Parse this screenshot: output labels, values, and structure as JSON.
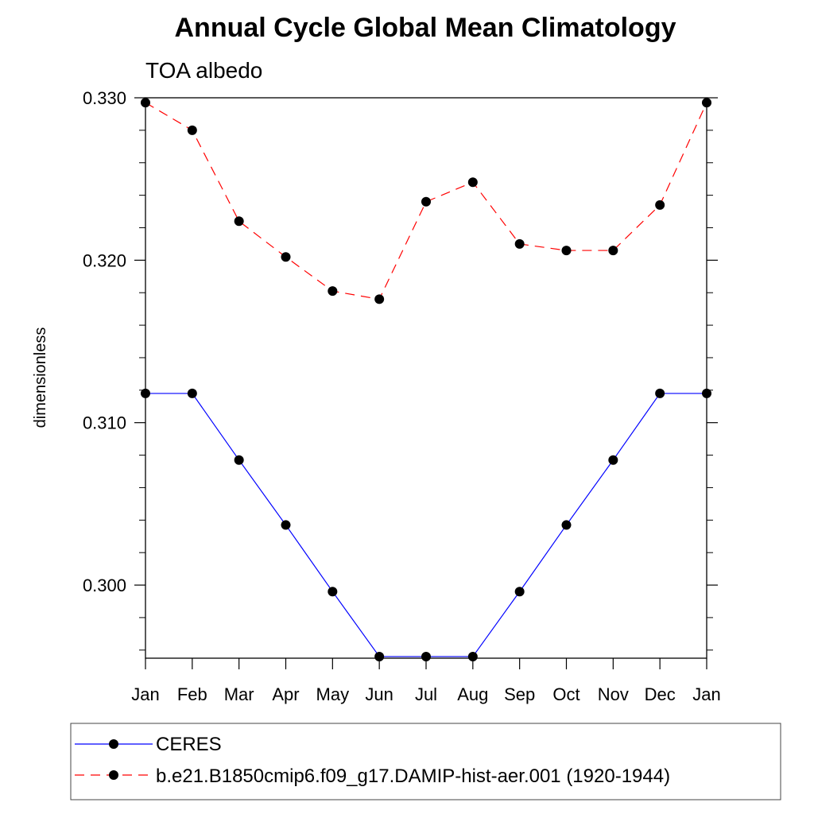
{
  "chart_data": {
    "type": "line",
    "title": "Annual Cycle Global Mean Climatology",
    "subtitle": "TOA albedo",
    "xlabel": "",
    "ylabel": "dimensionless",
    "categories": [
      "Jan",
      "Feb",
      "Mar",
      "Apr",
      "May",
      "Jun",
      "Jul",
      "Aug",
      "Sep",
      "Oct",
      "Nov",
      "Dec",
      "Jan"
    ],
    "ylim": [
      0.2955,
      0.33
    ],
    "yticks": [
      "0.300",
      "0.310",
      "0.320",
      "0.330"
    ],
    "grid": false,
    "legend_position": "bottom",
    "series": [
      {
        "name": "CERES",
        "color": "#0000ff",
        "dash": "solid",
        "marker": "filled-circle",
        "values": [
          0.3118,
          0.3118,
          0.3077,
          0.3037,
          0.2996,
          0.2956,
          0.2956,
          0.2956,
          0.2996,
          0.3037,
          0.3077,
          0.3118,
          0.3118
        ]
      },
      {
        "name": "b.e21.B1850cmip6.f09_g17.DAMIP-hist-aer.001 (1920-1944)",
        "color": "#ff0000",
        "dash": "dashed",
        "marker": "filled-circle",
        "values": [
          0.3297,
          0.328,
          0.3224,
          0.3202,
          0.3181,
          0.3176,
          0.3236,
          0.3248,
          0.321,
          0.3206,
          0.3206,
          0.3234,
          0.3297
        ]
      }
    ]
  }
}
